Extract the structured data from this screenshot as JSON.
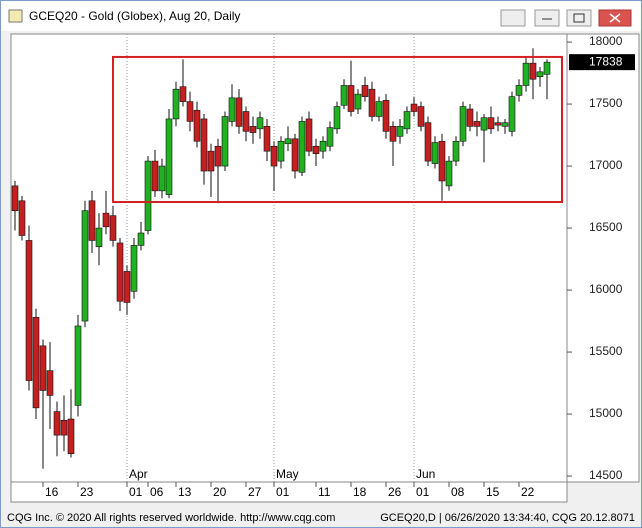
{
  "window": {
    "title": "GCEQ20 - Gold (Globex), Aug 20, Daily"
  },
  "footer": {
    "left": "CQG Inc. © 2020 All rights reserved worldwide. http://www.cqg.com",
    "right": "GCEQ20,D | 06/26/2020 13:34:40, CQG 20.12.8071"
  },
  "chart_data": {
    "type": "candlestick",
    "categories": [
      null,
      null,
      null,
      null,
      "16",
      null,
      null,
      null,
      null,
      "23",
      null,
      null,
      null,
      null,
      null,
      null,
      "01",
      null,
      null,
      "06",
      null,
      null,
      null,
      "13",
      null,
      null,
      null,
      null,
      "20",
      null,
      null,
      null,
      null,
      "27",
      null,
      null,
      null,
      "01",
      null,
      null,
      null,
      null,
      null,
      "11",
      null,
      null,
      null,
      null,
      "18",
      null,
      null,
      null,
      null,
      "26",
      null,
      null,
      null,
      "01",
      null,
      null,
      null,
      null,
      "08",
      null,
      null,
      null,
      null,
      "15",
      null,
      null,
      null,
      null,
      "22",
      null,
      null,
      null,
      null
    ],
    "month_labels": [
      "Apr",
      "May",
      "Jun"
    ],
    "open": [
      16840,
      16720,
      16400,
      15780,
      15550,
      15350,
      15020,
      14950,
      14960,
      15070,
      15750,
      16720,
      16350,
      16620,
      16600,
      16380,
      16150,
      15990,
      16360,
      16480,
      17040,
      16800,
      16770,
      17380,
      17640,
      17520,
      17450,
      17380,
      17120,
      17160,
      17000,
      17360,
      17550,
      17440,
      17320,
      17300,
      17320,
      17160,
      17040,
      17180,
      17220,
      16950,
      17380,
      17160,
      17120,
      17160,
      17300,
      17490,
      17650,
      17460,
      17650,
      17620,
      17400,
      17530,
      17320,
      17240,
      17300,
      17500,
      17480,
      17350,
      17020,
      17200,
      16840,
      17040,
      17200,
      17460,
      17360,
      17290,
      17390,
      17350,
      17320,
      17280,
      17570,
      17650,
      17830,
      17720,
      17740
    ],
    "high": [
      16880,
      16760,
      16520,
      15850,
      15600,
      15580,
      15100,
      15150,
      15200,
      15800,
      16720,
      16800,
      16620,
      16800,
      16680,
      16420,
      16200,
      16420,
      16550,
      17080,
      17130,
      17060,
      17460,
      17680,
      17860,
      17600,
      17520,
      17420,
      17180,
      17220,
      17440,
      17660,
      17620,
      17480,
      17400,
      17440,
      17380,
      17200,
      17240,
      17320,
      17260,
      17400,
      17440,
      17220,
      17240,
      17360,
      17520,
      17700,
      17850,
      17620,
      17720,
      17680,
      17560,
      17580,
      17360,
      17380,
      17480,
      17560,
      17520,
      17400,
      17240,
      17260,
      17080,
      17240,
      17520,
      17500,
      17440,
      17420,
      17480,
      17400,
      17380,
      17600,
      17700,
      17880,
      17950,
      17800,
      17860
    ],
    "low": [
      16480,
      16400,
      15190,
      14960,
      14560,
      14880,
      14660,
      14700,
      14650,
      14980,
      15700,
      16300,
      16200,
      16450,
      16350,
      15830,
      15800,
      15930,
      16320,
      16450,
      16750,
      16740,
      16740,
      17320,
      17480,
      17280,
      17150,
      16850,
      16750,
      16700,
      16960,
      17320,
      17260,
      17200,
      17180,
      17220,
      17040,
      16800,
      16980,
      17120,
      16900,
      16920,
      17080,
      17000,
      17060,
      17120,
      17260,
      17460,
      17400,
      17420,
      17520,
      17360,
      17360,
      17220,
      17000,
      17180,
      17260,
      17400,
      17280,
      17000,
      16980,
      16720,
      16800,
      17000,
      17160,
      17280,
      17240,
      17030,
      17260,
      17280,
      17260,
      17240,
      17520,
      17600,
      17540,
      17640,
      17540
    ],
    "close": [
      16640,
      16440,
      15270,
      15050,
      15190,
      15150,
      14830,
      14830,
      14680,
      15710,
      16640,
      16400,
      16500,
      16510,
      16400,
      15910,
      15900,
      16360,
      16460,
      17040,
      16800,
      17000,
      17380,
      17620,
      17520,
      17360,
      17200,
      16960,
      16960,
      17000,
      17400,
      17550,
      17320,
      17280,
      17270,
      17390,
      17120,
      17000,
      17200,
      17220,
      16960,
      17360,
      17120,
      17100,
      17200,
      17310,
      17480,
      17650,
      17440,
      17580,
      17560,
      17400,
      17520,
      17280,
      17200,
      17320,
      17440,
      17440,
      17320,
      17040,
      17190,
      16880,
      17040,
      17200,
      17480,
      17320,
      17320,
      17390,
      17300,
      17330,
      17350,
      17560,
      17650,
      17830,
      17700,
      17760,
      17838
    ],
    "up_color": "#22b022",
    "down_color": "#c42020",
    "highlight_box": {
      "low": 16710,
      "high": 17880,
      "color": "#d42020"
    },
    "ylim": [
      14452,
      18065
    ],
    "yticks": [
      14500,
      15000,
      15500,
      16000,
      16500,
      17000,
      17500,
      18000
    ]
  }
}
